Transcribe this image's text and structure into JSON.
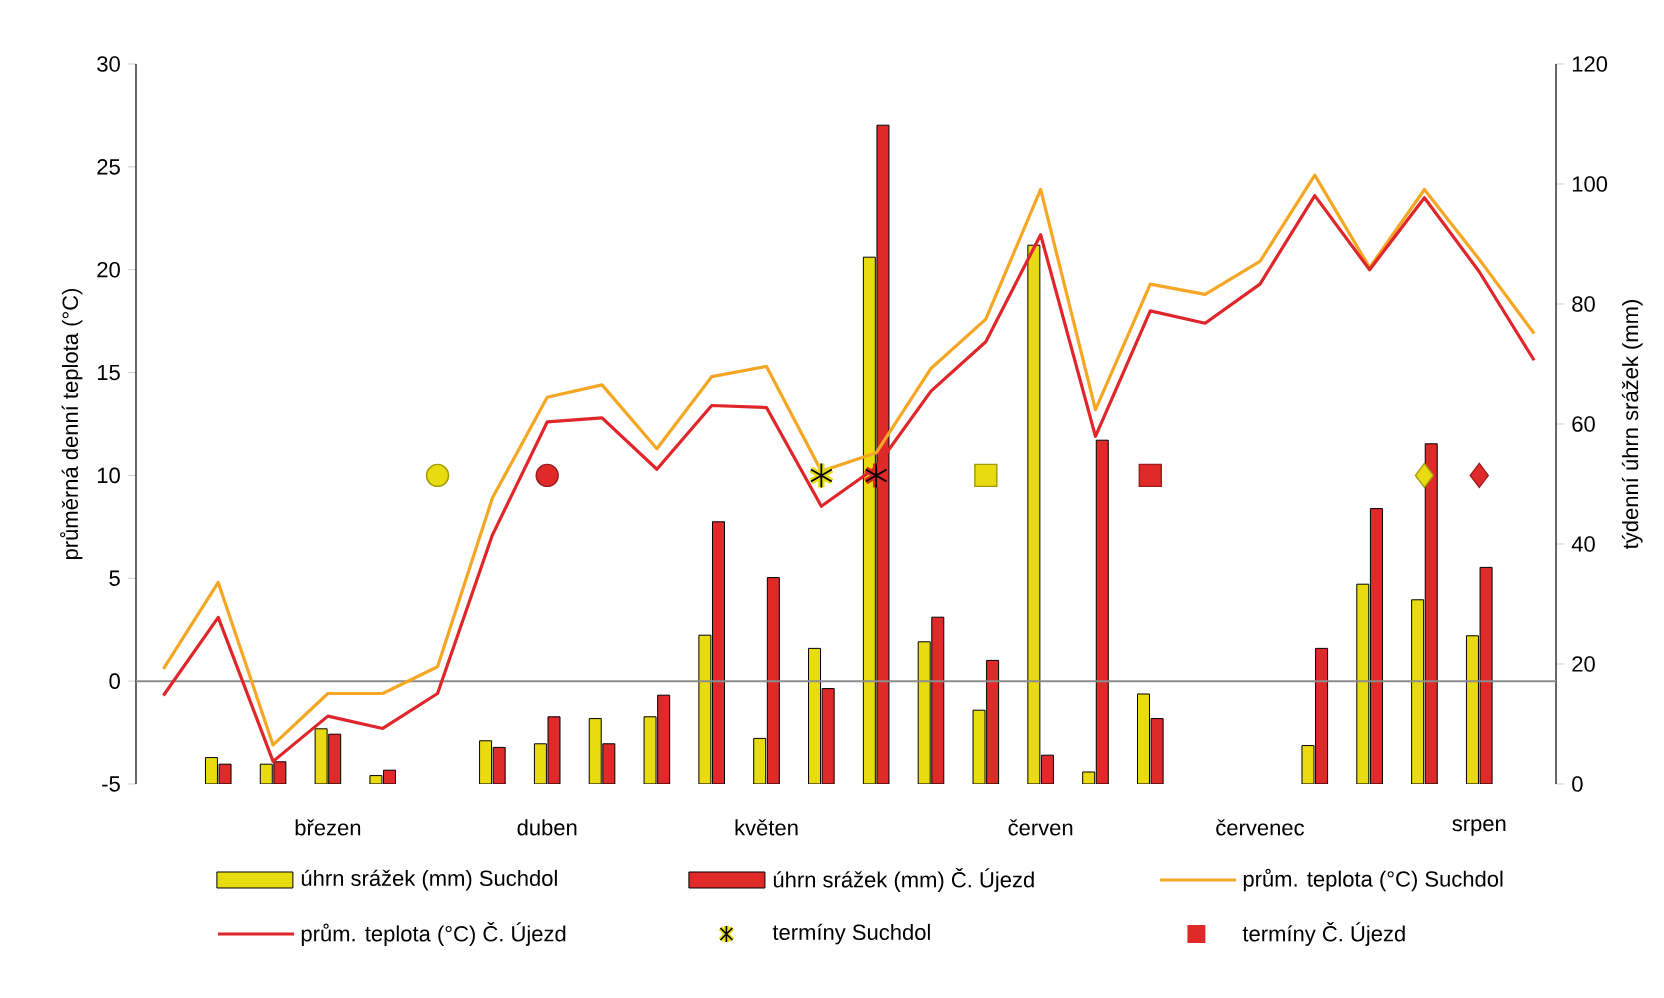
{
  "chart_data": {
    "type": "bar",
    "categories": [
      null,
      null,
      null,
      "březen",
      null,
      null,
      null,
      "duben",
      null,
      null,
      null,
      "květen",
      null,
      null,
      null,
      null,
      "červen",
      null,
      null,
      null,
      "červenec",
      null,
      null,
      null,
      "srpen",
      null
    ],
    "ylabel": "průměrná denní teplota (°C)",
    "y2label": "týdenní úhrn srážek (mm)",
    "ylim": [
      -5,
      30
    ],
    "yticks": [
      -5,
      0,
      5,
      10,
      15,
      20,
      25,
      30
    ],
    "y2lim": [
      0,
      120
    ],
    "y2ticks": [
      0,
      20,
      40,
      60,
      80,
      100,
      120
    ],
    "legend": "bottom",
    "ref_lines": [
      {
        "axis": "y",
        "value": 0,
        "color": "#8c8c8c"
      }
    ],
    "series": [
      {
        "name": "úhrn srážek (mm) Suchdol",
        "axis": "y2",
        "color": "#e8dc10",
        "values": [
          null,
          4.4,
          3.3,
          9.2,
          1.4,
          null,
          7.2,
          6.7,
          10.9,
          11.2,
          24.8,
          7.6,
          22.6,
          87.8,
          23.7,
          12.3,
          89.8,
          2.0,
          15.0,
          null,
          null,
          6.4,
          33.3,
          30.7,
          24.7,
          null
        ]
      },
      {
        "name": "úhrn srážek (mm) Č. Újezd",
        "axis": "y2",
        "color": "#e02a2a",
        "values": [
          null,
          3.3,
          3.7,
          8.3,
          2.3,
          null,
          6.1,
          11.2,
          6.7,
          14.8,
          43.7,
          34.4,
          15.9,
          109.8,
          27.8,
          20.6,
          4.8,
          57.3,
          10.9,
          null,
          null,
          22.6,
          45.9,
          56.7,
          36.1,
          null
        ]
      },
      {
        "name": "prům. teplota (°C) Suchdol",
        "type": "line",
        "color": "#f5a623",
        "values": [
          0.6,
          4.8,
          -3.1,
          -0.6,
          -0.6,
          0.7,
          8.9,
          13.8,
          14.4,
          11.3,
          14.8,
          15.3,
          10.2,
          11.1,
          15.2,
          17.6,
          23.9,
          13.2,
          19.3,
          18.8,
          20.4,
          24.6,
          20.1,
          23.9,
          20.5,
          16.9
        ]
      },
      {
        "name": "prům. teplota (°C) Č. Újezd",
        "type": "line",
        "color": "#e0262a",
        "values": [
          -0.7,
          3.1,
          -3.9,
          -1.7,
          -2.3,
          -0.6,
          7.1,
          12.6,
          12.8,
          10.3,
          13.4,
          13.3,
          8.5,
          10.4,
          14.1,
          16.5,
          21.7,
          11.9,
          18.0,
          17.4,
          19.3,
          23.6,
          20.0,
          23.5,
          19.9,
          15.6
        ]
      },
      {
        "name": "termíny Suchdol",
        "type": "scatter",
        "marker": "cross",
        "color": "#e8dc10",
        "values": [
          null,
          null,
          null,
          null,
          null,
          null,
          null,
          null,
          null,
          null,
          null,
          null,
          10,
          null,
          null,
          null,
          null,
          null,
          null,
          null,
          null,
          null,
          null,
          null,
          null,
          null
        ]
      },
      {
        "name": "termíny Č. Újezd",
        "type": "scatter",
        "marker": "square",
        "color": "#e02a2a",
        "values": [
          null,
          null,
          null,
          null,
          null,
          null,
          null,
          null,
          null,
          null,
          null,
          null,
          null,
          null,
          null,
          null,
          null,
          null,
          10,
          null,
          null,
          null,
          null,
          null,
          null,
          null
        ]
      },
      {
        "type": "scatter",
        "marker": "circle",
        "color": "#e8dc10",
        "values": [
          null,
          null,
          null,
          null,
          null,
          10,
          null,
          null,
          null,
          null,
          null,
          null,
          null,
          null,
          null,
          null,
          null,
          null,
          null,
          null,
          null,
          null,
          null,
          null,
          null,
          null
        ]
      },
      {
        "type": "scatter",
        "marker": "square",
        "color": "#e8dc10",
        "values": [
          null,
          null,
          null,
          null,
          null,
          null,
          null,
          null,
          null,
          null,
          null,
          null,
          null,
          null,
          null,
          10,
          null,
          null,
          null,
          null,
          null,
          null,
          null,
          null,
          null,
          null
        ]
      },
      {
        "type": "scatter",
        "marker": "diamond",
        "color": "#e8dc10",
        "values": [
          null,
          null,
          null,
          null,
          null,
          null,
          null,
          null,
          null,
          null,
          null,
          null,
          null,
          null,
          null,
          null,
          null,
          null,
          null,
          null,
          null,
          null,
          null,
          10,
          null,
          null
        ]
      },
      {
        "type": "scatter",
        "marker": "circle",
        "color": "#e02a2a",
        "values": [
          null,
          null,
          null,
          null,
          null,
          null,
          null,
          10,
          null,
          null,
          null,
          null,
          null,
          null,
          null,
          null,
          null,
          null,
          null,
          null,
          null,
          null,
          null,
          null,
          null,
          null
        ]
      },
      {
        "type": "scatter",
        "marker": "cross",
        "color": "#e02a2a",
        "values": [
          null,
          null,
          null,
          null,
          null,
          null,
          null,
          null,
          null,
          null,
          null,
          null,
          null,
          10,
          null,
          null,
          null,
          null,
          null,
          null,
          null,
          null,
          null,
          null,
          null,
          null
        ]
      },
      {
        "type": "scatter",
        "marker": "diamond",
        "color": "#e02a2a",
        "values": [
          null,
          null,
          null,
          null,
          null,
          null,
          null,
          null,
          null,
          null,
          null,
          null,
          null,
          null,
          null,
          null,
          null,
          null,
          null,
          null,
          null,
          null,
          null,
          null,
          10,
          null
        ]
      }
    ]
  }
}
